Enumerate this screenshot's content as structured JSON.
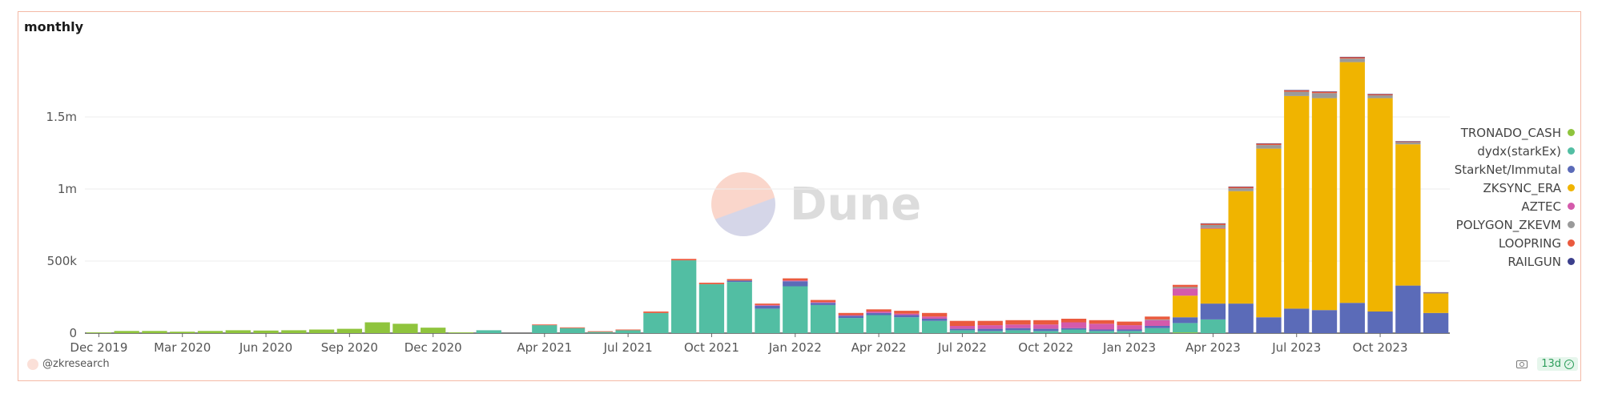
{
  "header": {
    "title": "monthly"
  },
  "watermark": {
    "text": "Dune"
  },
  "footer": {
    "user": "@zkresearch",
    "age": "13d"
  },
  "icons": {
    "camera": "camera-icon",
    "check": "check-circle-icon",
    "avatar": "avatar-icon"
  },
  "chart_data": {
    "type": "bar",
    "stacked": true,
    "title": "monthly",
    "ylim": [
      0,
      2000000
    ],
    "yticks": [
      {
        "value": 0,
        "label": "0"
      },
      {
        "value": 500000,
        "label": "500k"
      },
      {
        "value": 1000000,
        "label": "1m"
      },
      {
        "value": 1500000,
        "label": "1.5m"
      }
    ],
    "xticks": [
      {
        "index": 0,
        "label": "Dec 2019"
      },
      {
        "index": 3,
        "label": "Mar 2020"
      },
      {
        "index": 6,
        "label": "Jun 2020"
      },
      {
        "index": 9,
        "label": "Sep 2020"
      },
      {
        "index": 12,
        "label": "Dec 2020"
      },
      {
        "index": 16,
        "label": "Apr 2021"
      },
      {
        "index": 19,
        "label": "Jul 2021"
      },
      {
        "index": 22,
        "label": "Oct 2021"
      },
      {
        "index": 25,
        "label": "Jan 2022"
      },
      {
        "index": 28,
        "label": "Apr 2022"
      },
      {
        "index": 31,
        "label": "Jul 2022"
      },
      {
        "index": 34,
        "label": "Oct 2022"
      },
      {
        "index": 37,
        "label": "Jan 2023"
      },
      {
        "index": 40,
        "label": "Apr 2023"
      },
      {
        "index": 43,
        "label": "Jul 2023"
      },
      {
        "index": 46,
        "label": "Oct 2023"
      }
    ],
    "categories": [
      "2019-12",
      "2020-01",
      "2020-02",
      "2020-03",
      "2020-04",
      "2020-05",
      "2020-06",
      "2020-07",
      "2020-08",
      "2020-09",
      "2020-10",
      "2020-11",
      "2020-12",
      "2021-01",
      "2021-02",
      "2021-03",
      "2021-04",
      "2021-05",
      "2021-06",
      "2021-07",
      "2021-08",
      "2021-09",
      "2021-10",
      "2021-11",
      "2021-12",
      "2022-01",
      "2022-02",
      "2022-03",
      "2022-04",
      "2022-05",
      "2022-06",
      "2022-07",
      "2022-08",
      "2022-09",
      "2022-10",
      "2022-11",
      "2022-12",
      "2023-01",
      "2023-02",
      "2023-03",
      "2023-04",
      "2023-05",
      "2023-06",
      "2023-07",
      "2023-08",
      "2023-09",
      "2023-10",
      "2023-11",
      "2023-12"
    ],
    "legend_position": "right",
    "series": [
      {
        "name": "TRONADO_CASH",
        "color": "#8fc43d",
        "values": [
          5000,
          15000,
          15000,
          10000,
          15000,
          20000,
          18000,
          20000,
          25000,
          30000,
          75000,
          65000,
          38000,
          5000,
          0,
          0,
          0,
          0,
          0,
          0,
          0,
          0,
          0,
          0,
          0,
          0,
          0,
          0,
          0,
          0,
          0,
          0,
          0,
          0,
          0,
          0,
          0,
          0,
          0,
          5000,
          0,
          0,
          0,
          0,
          0,
          0,
          0,
          0,
          0
        ]
      },
      {
        "name": "dydx(starkEx)",
        "color": "#52bea3",
        "values": [
          0,
          0,
          0,
          0,
          0,
          0,
          0,
          0,
          0,
          0,
          0,
          0,
          0,
          0,
          20000,
          0,
          55000,
          35000,
          8000,
          20000,
          140000,
          505000,
          340000,
          355000,
          170000,
          325000,
          195000,
          105000,
          125000,
          110000,
          85000,
          20000,
          15000,
          20000,
          15000,
          25000,
          15000,
          15000,
          35000,
          65000,
          95000,
          0,
          0,
          0,
          0,
          0,
          0,
          0,
          0
        ]
      },
      {
        "name": "StarkNet/Immutal",
        "color": "#5b6bb8",
        "values": [
          0,
          0,
          0,
          0,
          0,
          0,
          0,
          0,
          0,
          0,
          0,
          0,
          0,
          0,
          0,
          0,
          0,
          0,
          0,
          0,
          0,
          0,
          0,
          10000,
          20000,
          35000,
          15000,
          15000,
          15000,
          15000,
          15000,
          10000,
          15000,
          15000,
          15000,
          10000,
          10000,
          10000,
          15000,
          40000,
          110000,
          205000,
          110000,
          170000,
          160000,
          210000,
          150000,
          330000,
          140000
        ]
      },
      {
        "name": "ZKSYNC_ERA",
        "color": "#f0b400",
        "values": [
          0,
          0,
          0,
          0,
          0,
          0,
          0,
          0,
          0,
          0,
          0,
          0,
          0,
          0,
          0,
          0,
          0,
          0,
          0,
          0,
          0,
          0,
          0,
          0,
          0,
          0,
          0,
          0,
          0,
          0,
          0,
          0,
          0,
          0,
          0,
          0,
          0,
          0,
          0,
          150000,
          520000,
          780000,
          1170000,
          1475000,
          1470000,
          1670000,
          1480000,
          980000,
          135000
        ]
      },
      {
        "name": "AZTEC",
        "color": "#d45aab",
        "values": [
          0,
          0,
          0,
          0,
          0,
          0,
          0,
          0,
          0,
          0,
          0,
          0,
          0,
          0,
          0,
          0,
          0,
          0,
          0,
          0,
          0,
          0,
          0,
          0,
          5000,
          5000,
          5000,
          5000,
          10000,
          10000,
          15000,
          20000,
          25000,
          25000,
          30000,
          40000,
          40000,
          30000,
          40000,
          50000,
          5000,
          0,
          0,
          0,
          0,
          0,
          0,
          0,
          0
        ]
      },
      {
        "name": "POLYGON_ZKEVM",
        "color": "#9a9a9a",
        "values": [
          0,
          0,
          0,
          0,
          0,
          0,
          0,
          0,
          0,
          0,
          0,
          0,
          0,
          0,
          0,
          0,
          0,
          0,
          0,
          0,
          0,
          0,
          0,
          0,
          0,
          0,
          0,
          0,
          0,
          0,
          0,
          0,
          0,
          0,
          0,
          0,
          0,
          0,
          5000,
          10000,
          20000,
          20000,
          25000,
          30000,
          35000,
          25000,
          20000,
          15000,
          5000
        ]
      },
      {
        "name": "LOOPRING",
        "color": "#ea5a3e",
        "values": [
          0,
          0,
          0,
          0,
          0,
          0,
          0,
          0,
          0,
          0,
          0,
          0,
          0,
          0,
          0,
          0,
          5000,
          5000,
          5000,
          5000,
          10000,
          10000,
          10000,
          10000,
          10000,
          15000,
          15000,
          15000,
          15000,
          20000,
          25000,
          35000,
          30000,
          30000,
          30000,
          25000,
          25000,
          25000,
          20000,
          15000,
          10000,
          10000,
          10000,
          10000,
          10000,
          10000,
          8000,
          5000,
          3000
        ]
      },
      {
        "name": "RAILGUN",
        "color": "#3b3f8c",
        "values": [
          0,
          0,
          0,
          0,
          0,
          0,
          0,
          0,
          0,
          0,
          0,
          0,
          0,
          0,
          0,
          0,
          0,
          0,
          0,
          0,
          0,
          0,
          0,
          0,
          0,
          0,
          0,
          0,
          0,
          0,
          0,
          0,
          0,
          0,
          0,
          0,
          0,
          0,
          0,
          0,
          2000,
          2000,
          2000,
          2000,
          2000,
          2000,
          2000,
          2000,
          1000
        ]
      }
    ]
  }
}
